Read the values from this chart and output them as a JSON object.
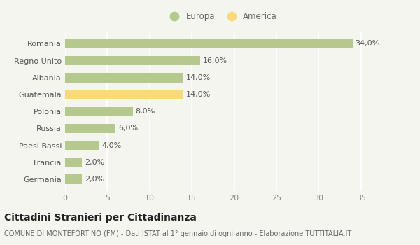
{
  "categories": [
    "Germania",
    "Francia",
    "Paesi Bassi",
    "Russia",
    "Polonia",
    "Guatemala",
    "Albania",
    "Regno Unito",
    "Romania"
  ],
  "values": [
    2.0,
    2.0,
    4.0,
    6.0,
    8.0,
    14.0,
    14.0,
    16.0,
    34.0
  ],
  "colors": [
    "#b5c98e",
    "#b5c98e",
    "#b5c98e",
    "#b5c98e",
    "#b5c98e",
    "#f9d97c",
    "#b5c98e",
    "#b5c98e",
    "#b5c98e"
  ],
  "labels": [
    "2,0%",
    "2,0%",
    "4,0%",
    "6,0%",
    "8,0%",
    "14,0%",
    "14,0%",
    "16,0%",
    "34,0%"
  ],
  "xlim": [
    0,
    37
  ],
  "xticks": [
    0,
    5,
    10,
    15,
    20,
    25,
    30,
    35
  ],
  "legend_europa_color": "#b5c98e",
  "legend_america_color": "#f9d97c",
  "title_bold": "Cittadini Stranieri per Cittadinanza",
  "subtitle": "COMUNE DI MONTEFORTINO (FM) - Dati ISTAT al 1° gennaio di ogni anno - Elaborazione TUTTITALIA.IT",
  "background_color": "#f5f5f0",
  "grid_color": "#ffffff",
  "bar_height": 0.55,
  "label_fontsize": 8,
  "tick_fontsize": 8,
  "title_fontsize": 10,
  "subtitle_fontsize": 7,
  "legend_fontsize": 8.5
}
